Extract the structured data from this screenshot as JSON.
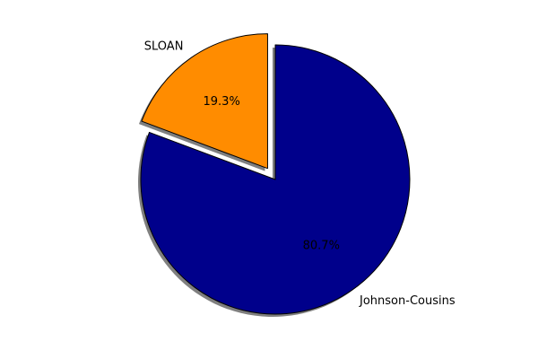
{
  "chart_data": {
    "type": "pie",
    "categories": [
      "Johnson-Cousins",
      "SLOAN"
    ],
    "values": [
      80.7,
      19.3
    ],
    "percent_labels": [
      "80.7%",
      "19.3%"
    ],
    "colors": [
      "#00008b",
      "#ff8c00"
    ],
    "explode": [
      0,
      0.1
    ],
    "shadow": true,
    "start_angle_deg": 90,
    "direction": "clockwise"
  }
}
